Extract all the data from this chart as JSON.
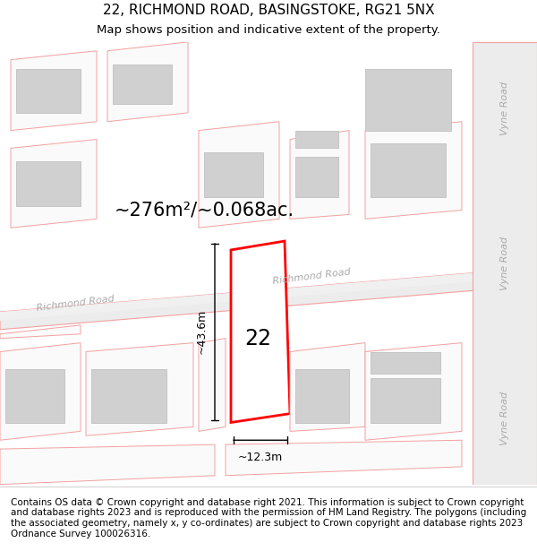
{
  "title_line1": "22, RICHMOND ROAD, BASINGSTOKE, RG21 5NX",
  "title_line2": "Map shows position and indicative extent of the property.",
  "footer_text": "Contains OS data © Crown copyright and database right 2021. This information is subject to Crown copyright and database rights 2023 and is reproduced with the permission of HM Land Registry. The polygons (including the associated geometry, namely x, y co-ordinates) are subject to Crown copyright and database rights 2023 Ordnance Survey 100026316.",
  "area_label": "~276m²/~0.068ac.",
  "number_label": "22",
  "width_label": "~12.3m",
  "height_label": "~43.6m",
  "bg_color": "#f5f5f5",
  "map_bg_color": "#ffffff",
  "road_outline_color": "#f4a0a0",
  "road_fill_color": "#e8e8e8",
  "building_fill_color": "#d8d8d8",
  "building_outline_color": "#cccccc",
  "plot_fill_color": "#ffffff",
  "plot_outline_color": "#ff0000",
  "road_label_color": "#aaaaaa",
  "road_label1": "Richmond Road",
  "road_label2": "Richmond Road",
  "road_label_right1": "Vyne Road",
  "road_label_right2": "Vyne Road",
  "road_label_right3": "Vyne Road",
  "dim_line_color": "#000000",
  "text_color": "#000000",
  "title_fontsize": 11,
  "subtitle_fontsize": 9.5,
  "area_fontsize": 16,
  "number_fontsize": 18,
  "dim_fontsize": 10,
  "footer_fontsize": 7.5,
  "road_label_fontsize": 9
}
